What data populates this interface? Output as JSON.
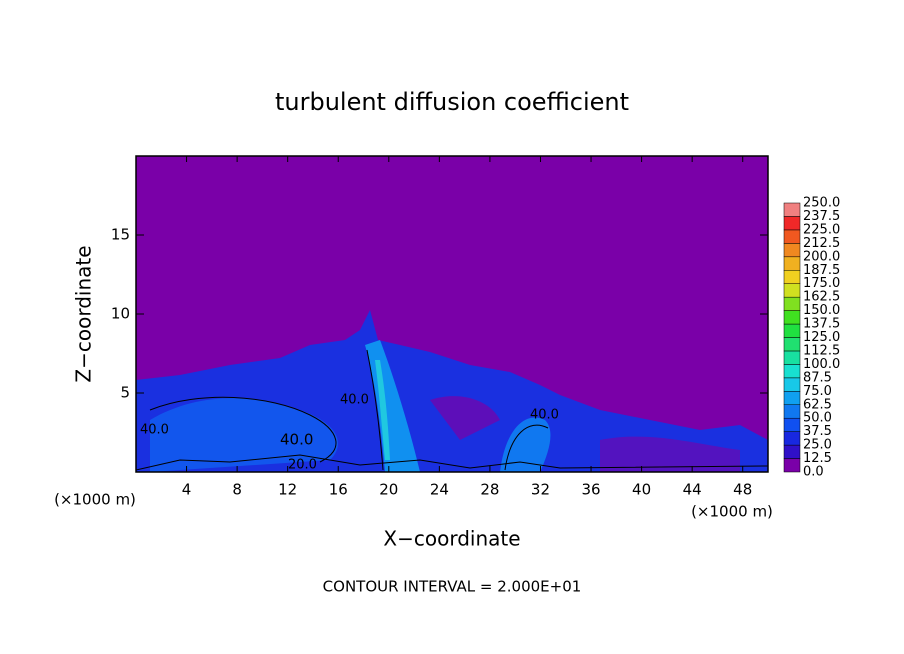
{
  "chart_data": {
    "type": "contour",
    "title": "turbulent diffusion coefficient",
    "x_label": "X−coordinate",
    "y_label": "Z−coordinate",
    "x_unit": "(×1000 m)",
    "x_unit_right": "(×1000 m)",
    "footer": "CONTOUR INTERVAL = 2.000E+01",
    "contour_labels": [
      "40.0",
      "40.0",
      "40.0",
      "40.0",
      "20.0"
    ],
    "xlim": [
      0,
      50
    ],
    "xticks": [
      4,
      8,
      12,
      16,
      20,
      24,
      28,
      32,
      36,
      40,
      44,
      48
    ],
    "ylim": [
      0,
      20
    ],
    "yticks": [
      5,
      10,
      15
    ],
    "colorbar": {
      "levels": [
        {
          "value": 0,
          "label": "0.0"
        },
        {
          "value": 12.5,
          "label": "12.5"
        },
        {
          "value": 25,
          "label": "25.0"
        },
        {
          "value": 37.5,
          "label": "37.5"
        },
        {
          "value": 50,
          "label": "50.0"
        },
        {
          "value": 62.5,
          "label": "62.5"
        },
        {
          "value": 75,
          "label": "75.0"
        },
        {
          "value": 87.5,
          "label": "87.5"
        },
        {
          "value": 100,
          "label": "100.0"
        },
        {
          "value": 112.5,
          "label": "112.5"
        },
        {
          "value": 125,
          "label": "125.0"
        },
        {
          "value": 137.5,
          "label": "137.5"
        },
        {
          "value": 150,
          "label": "150.0"
        },
        {
          "value": 162.5,
          "label": "162.5"
        },
        {
          "value": 175,
          "label": "175.0"
        },
        {
          "value": 187.5,
          "label": "187.5"
        },
        {
          "value": 200,
          "label": "200.0"
        },
        {
          "value": 212.5,
          "label": "212.5"
        },
        {
          "value": 225,
          "label": "225.0"
        },
        {
          "value": 237.5,
          "label": "237.5"
        },
        {
          "value": 250,
          "label": "250.0"
        }
      ],
      "colors": [
        "#7a00a8",
        "#3010c8",
        "#1828e0",
        "#1050f0",
        "#1078f0",
        "#10a0f0",
        "#18c8e8",
        "#18e0d0",
        "#18e0a0",
        "#20e070",
        "#20e040",
        "#40e020",
        "#80e020",
        "#d0e020",
        "#f0d020",
        "#f0b020",
        "#f08820",
        "#f05820",
        "#f02828",
        "#f08080"
      ]
    }
  }
}
